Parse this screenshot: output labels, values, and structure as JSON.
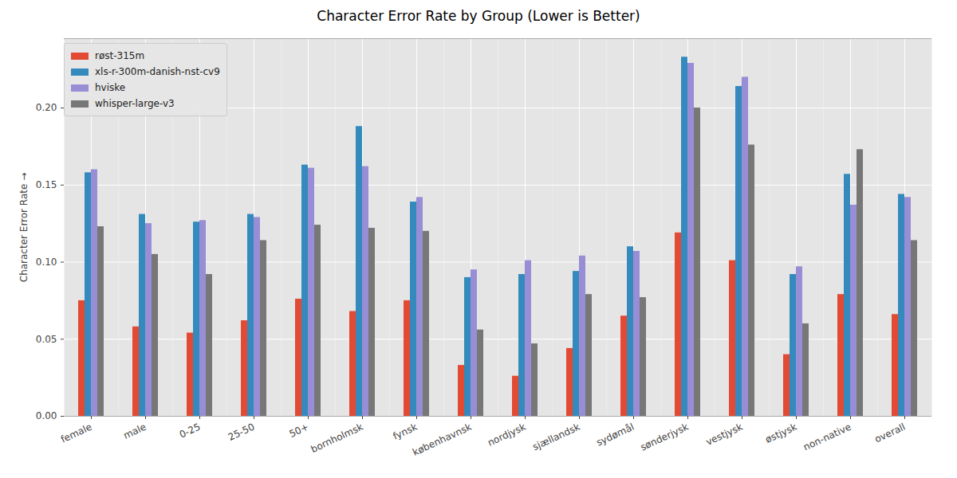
{
  "chart_data": {
    "type": "bar",
    "title": "Character Error Rate by Group (Lower is Better)",
    "y_label": "Character Error Rate",
    "categories": [
      "female",
      "male",
      "0-25",
      "25-50",
      "50+",
      "bornholmsk",
      "fynsk",
      "københavnsk",
      "nordjysk",
      "sjællandsk",
      "sydømål",
      "sønderjysk",
      "vestjysk",
      "østjysk",
      "non-native",
      "overall"
    ],
    "series": [
      {
        "name": "røst-315m",
        "color": "#E24A33",
        "values": [
          0.075,
          0.058,
          0.054,
          0.062,
          0.076,
          0.068,
          0.075,
          0.033,
          0.026,
          0.044,
          0.065,
          0.119,
          0.101,
          0.04,
          0.079,
          0.066
        ]
      },
      {
        "name": "xls-r-300m-danish-nst-cv9",
        "color": "#348ABD",
        "values": [
          0.158,
          0.131,
          0.126,
          0.131,
          0.163,
          0.188,
          0.139,
          0.09,
          0.092,
          0.094,
          0.11,
          0.233,
          0.214,
          0.092,
          0.157,
          0.144
        ]
      },
      {
        "name": "hviske",
        "color": "#988ED5",
        "values": [
          0.16,
          0.125,
          0.127,
          0.129,
          0.161,
          0.162,
          0.142,
          0.095,
          0.101,
          0.104,
          0.107,
          0.229,
          0.22,
          0.097,
          0.137,
          0.142
        ]
      },
      {
        "name": "whisper-large-v3",
        "color": "#777777",
        "values": [
          0.123,
          0.105,
          0.092,
          0.114,
          0.124,
          0.122,
          0.12,
          0.056,
          0.047,
          0.079,
          0.077,
          0.2,
          0.176,
          0.06,
          0.173,
          0.114
        ]
      }
    ],
    "ylim": [
      0,
      0.245
    ],
    "yticks": [
      {
        "value": 0,
        "label": "0.00"
      },
      {
        "value": 0.05,
        "label": "0.05"
      },
      {
        "value": 0.1,
        "label": "0.10"
      },
      {
        "value": 0.15,
        "label": "0.15"
      },
      {
        "value": 0.2,
        "label": "0.20"
      }
    ],
    "grid": true,
    "legend": "upper left"
  }
}
